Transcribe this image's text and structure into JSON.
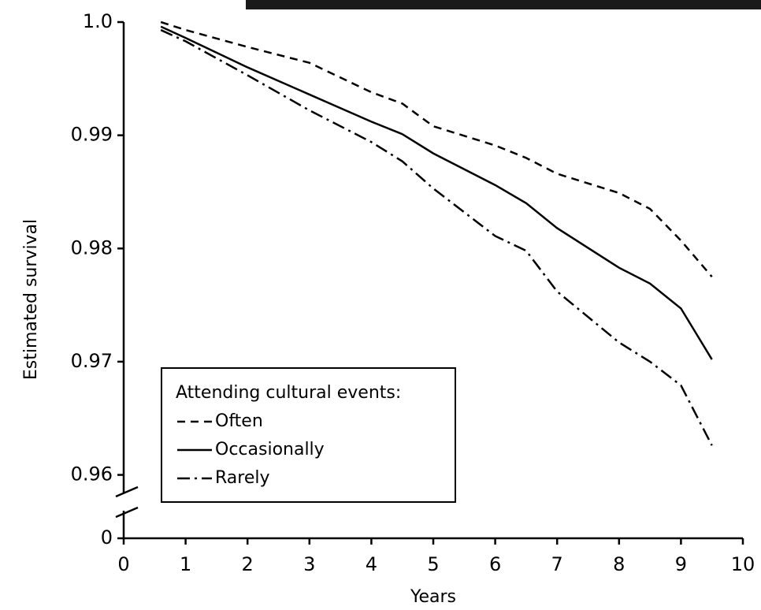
{
  "chart_data": {
    "type": "line",
    "y_label": "Estimated survival",
    "x_label": "Years",
    "legend_title": "Attending cultural events:",
    "x": [
      0.6,
      1,
      2,
      3,
      4,
      4.5,
      5,
      6,
      6.5,
      7,
      8,
      8.5,
      9,
      9.5
    ],
    "series": [
      {
        "name": "Often",
        "color": "#000000",
        "dash": "dashed",
        "values": [
          1.0,
          0.9993,
          0.9978,
          0.9964,
          0.9938,
          0.9928,
          0.9908,
          0.9891,
          0.988,
          0.9866,
          0.9849,
          0.9835,
          0.9807,
          0.9775
        ]
      },
      {
        "name": "Occasionally",
        "color": "#000000",
        "dash": "solid",
        "values": [
          0.9996,
          0.9986,
          0.996,
          0.9936,
          0.9912,
          0.9901,
          0.9884,
          0.9856,
          0.984,
          0.9818,
          0.9783,
          0.9769,
          0.9747,
          0.9702
        ]
      },
      {
        "name": "Rarely",
        "color": "#000000",
        "dash": "dashdot",
        "values": [
          0.9993,
          0.9983,
          0.9953,
          0.9922,
          0.9894,
          0.9877,
          0.9853,
          0.9811,
          0.9798,
          0.9762,
          0.9717,
          0.97,
          0.9679,
          0.9626
        ]
      }
    ],
    "xlim": [
      0,
      10
    ],
    "xticks": [
      0,
      1,
      2,
      3,
      4,
      5,
      6,
      7,
      8,
      9,
      10
    ],
    "ylim": [
      0.9544,
      1.0
    ],
    "yticks": [
      0,
      0.96,
      0.97,
      0.98,
      0.99,
      {
        "value": 1,
        "label": "1.0"
      }
    ],
    "y_axis_break": true,
    "legend_position": "lower left"
  }
}
